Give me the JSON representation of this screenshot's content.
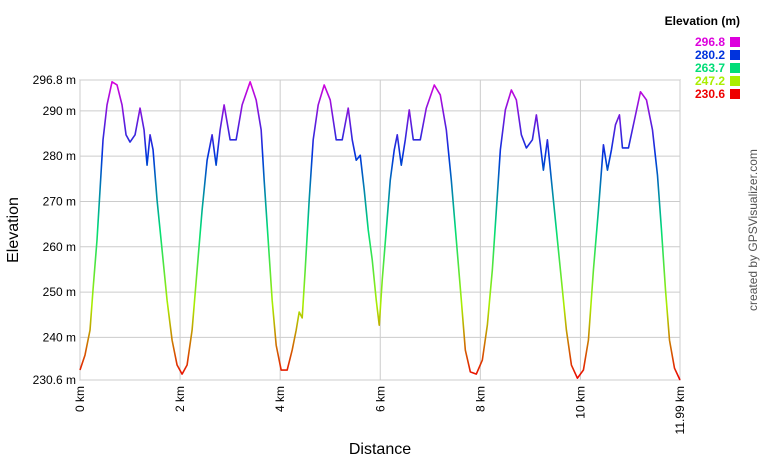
{
  "chart_data": {
    "type": "line",
    "y_title": "Elevation",
    "x_title": "Distance",
    "legend_title": "Elevation (m)",
    "credit": "created by GPSVisualizer.com",
    "grid": true,
    "line_gradient": true,
    "color_scale": [
      {
        "value": 296.8,
        "color": "#dd00dd"
      },
      {
        "value": 280.2,
        "color": "#0033dd"
      },
      {
        "value": 263.7,
        "color": "#00dd77"
      },
      {
        "value": 247.2,
        "color": "#aaee00"
      },
      {
        "value": 230.6,
        "color": "#ee0000"
      }
    ],
    "xlim": [
      0,
      11.99
    ],
    "ylim": [
      230.6,
      296.8
    ],
    "xticks": [
      {
        "value": 0,
        "label": "0 km"
      },
      {
        "value": 2,
        "label": "2 km"
      },
      {
        "value": 4,
        "label": "4 km"
      },
      {
        "value": 6,
        "label": "6 km"
      },
      {
        "value": 8,
        "label": "8 km"
      },
      {
        "value": 10,
        "label": "10 km"
      },
      {
        "value": 11.99,
        "label": "11.99 km"
      }
    ],
    "yticks": [
      {
        "value": 230.6,
        "label": "230.6 m"
      },
      {
        "value": 240,
        "label": "240 m"
      },
      {
        "value": 250,
        "label": "250 m"
      },
      {
        "value": 260,
        "label": "260 m"
      },
      {
        "value": 270,
        "label": "270 m"
      },
      {
        "value": 280,
        "label": "280 m"
      },
      {
        "value": 290,
        "label": "290 m"
      },
      {
        "value": 296.8,
        "label": "296.8 m"
      }
    ],
    "x": [
      0,
      0.1,
      0.2,
      0.26,
      0.34,
      0.4,
      0.46,
      0.54,
      0.64,
      0.74,
      0.84,
      0.92,
      1.0,
      1.1,
      1.2,
      1.28,
      1.34,
      1.4,
      1.46,
      1.54,
      1.64,
      1.74,
      1.84,
      1.94,
      2.04,
      2.14,
      2.24,
      2.34,
      2.44,
      2.54,
      2.64,
      2.72,
      2.8,
      2.88,
      3.0,
      3.12,
      3.24,
      3.4,
      3.52,
      3.62,
      3.68,
      3.76,
      3.84,
      3.92,
      4.02,
      4.14,
      4.24,
      4.32,
      4.38,
      4.44,
      4.5,
      4.58,
      4.66,
      4.76,
      4.88,
      5.0,
      5.12,
      5.24,
      5.36,
      5.44,
      5.52,
      5.6,
      5.68,
      5.76,
      5.84,
      5.92,
      5.98,
      6.04,
      6.12,
      6.2,
      6.28,
      6.34,
      6.42,
      6.5,
      6.58,
      6.66,
      6.8,
      6.92,
      7.08,
      7.2,
      7.32,
      7.42,
      7.52,
      7.62,
      7.7,
      7.8,
      7.92,
      8.04,
      8.14,
      8.24,
      8.32,
      8.4,
      8.5,
      8.62,
      8.72,
      8.82,
      8.92,
      9.04,
      9.12,
      9.2,
      9.26,
      9.34,
      9.42,
      9.52,
      9.62,
      9.72,
      9.82,
      9.94,
      10.06,
      10.16,
      10.26,
      10.36,
      10.46,
      10.54,
      10.62,
      10.7,
      10.78,
      10.84,
      10.96,
      11.08,
      11.2,
      11.32,
      11.44,
      11.54,
      11.62,
      11.7,
      11.78,
      11.88,
      11.99
    ],
    "values": [
      232.8,
      236.1,
      241.6,
      250.5,
      261.5,
      272.5,
      283.6,
      291.3,
      296.4,
      295.7,
      291.3,
      284.7,
      283.1,
      284.7,
      290.6,
      285.8,
      278.0,
      284.7,
      281.4,
      270.3,
      259.3,
      248.2,
      239.4,
      233.9,
      231.9,
      233.9,
      241.6,
      254.9,
      268.1,
      279.1,
      284.7,
      278.0,
      285.8,
      291.3,
      283.6,
      283.6,
      291.3,
      296.4,
      292.4,
      285.8,
      274.7,
      261.5,
      248.2,
      238.3,
      232.8,
      232.8,
      237.2,
      241.6,
      245.6,
      244.3,
      254.9,
      270.3,
      283.6,
      291.3,
      295.7,
      292.4,
      283.6,
      283.6,
      290.6,
      283.6,
      279.1,
      280.2,
      272.5,
      263.7,
      257.1,
      248.2,
      242.7,
      252.7,
      263.7,
      274.7,
      281.4,
      284.7,
      278.0,
      283.6,
      290.2,
      283.6,
      283.6,
      290.6,
      295.7,
      293.5,
      285.8,
      274.7,
      261.5,
      248.2,
      237.2,
      232.4,
      231.9,
      235.0,
      242.7,
      254.9,
      268.1,
      281.4,
      290.2,
      294.6,
      292.4,
      284.7,
      281.8,
      283.6,
      289.1,
      282.5,
      276.9,
      283.6,
      274.7,
      263.7,
      252.7,
      241.6,
      233.9,
      231.0,
      232.8,
      239.4,
      254.9,
      268.1,
      282.5,
      276.9,
      281.4,
      286.9,
      289.1,
      281.8,
      281.8,
      288.0,
      294.2,
      292.4,
      285.8,
      275.8,
      263.7,
      250.5,
      239.4,
      233.2,
      230.6
    ]
  }
}
